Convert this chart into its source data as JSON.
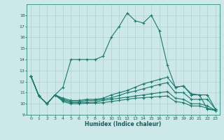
{
  "xlabel": "Humidex (Indice chaleur)",
  "bg_color": "#cce8e8",
  "grid_color": "#b0d0d0",
  "line_color": "#1a7a6a",
  "xlim": [
    -0.5,
    23.5
  ],
  "ylim": [
    9,
    19
  ],
  "yticks": [
    9,
    10,
    11,
    12,
    13,
    14,
    15,
    16,
    17,
    18
  ],
  "xticks": [
    0,
    1,
    2,
    3,
    4,
    5,
    6,
    7,
    8,
    9,
    10,
    11,
    12,
    13,
    14,
    15,
    16,
    17,
    18,
    19,
    20,
    21,
    22,
    23
  ],
  "series": [
    [
      12.5,
      10.7,
      10.0,
      10.8,
      11.5,
      14.0,
      14.0,
      14.0,
      14.0,
      14.3,
      16.0,
      17.0,
      18.2,
      17.5,
      17.3,
      18.0,
      16.6,
      13.5,
      11.5,
      11.6,
      10.8,
      10.8,
      9.5,
      9.4
    ],
    [
      12.5,
      10.7,
      10.0,
      10.8,
      10.5,
      10.3,
      10.3,
      10.4,
      10.4,
      10.5,
      10.8,
      11.0,
      11.2,
      11.5,
      11.8,
      12.0,
      12.2,
      12.4,
      11.5,
      11.6,
      10.9,
      10.8,
      10.8,
      9.5
    ],
    [
      12.5,
      10.7,
      10.0,
      10.8,
      10.4,
      10.2,
      10.2,
      10.3,
      10.3,
      10.4,
      10.55,
      10.75,
      11.0,
      11.15,
      11.35,
      11.55,
      11.75,
      11.9,
      11.0,
      11.0,
      10.4,
      10.4,
      10.4,
      9.5
    ],
    [
      12.5,
      10.7,
      10.0,
      10.8,
      10.3,
      10.1,
      10.1,
      10.15,
      10.15,
      10.3,
      10.4,
      10.5,
      10.6,
      10.7,
      10.8,
      10.9,
      11.0,
      11.1,
      10.5,
      10.4,
      10.0,
      10.0,
      9.8,
      9.4
    ],
    [
      12.5,
      10.7,
      10.0,
      10.8,
      10.2,
      10.0,
      10.0,
      10.05,
      10.05,
      10.1,
      10.2,
      10.3,
      10.4,
      10.5,
      10.55,
      10.6,
      10.65,
      10.7,
      10.2,
      10.1,
      9.8,
      9.8,
      9.6,
      9.4
    ]
  ]
}
